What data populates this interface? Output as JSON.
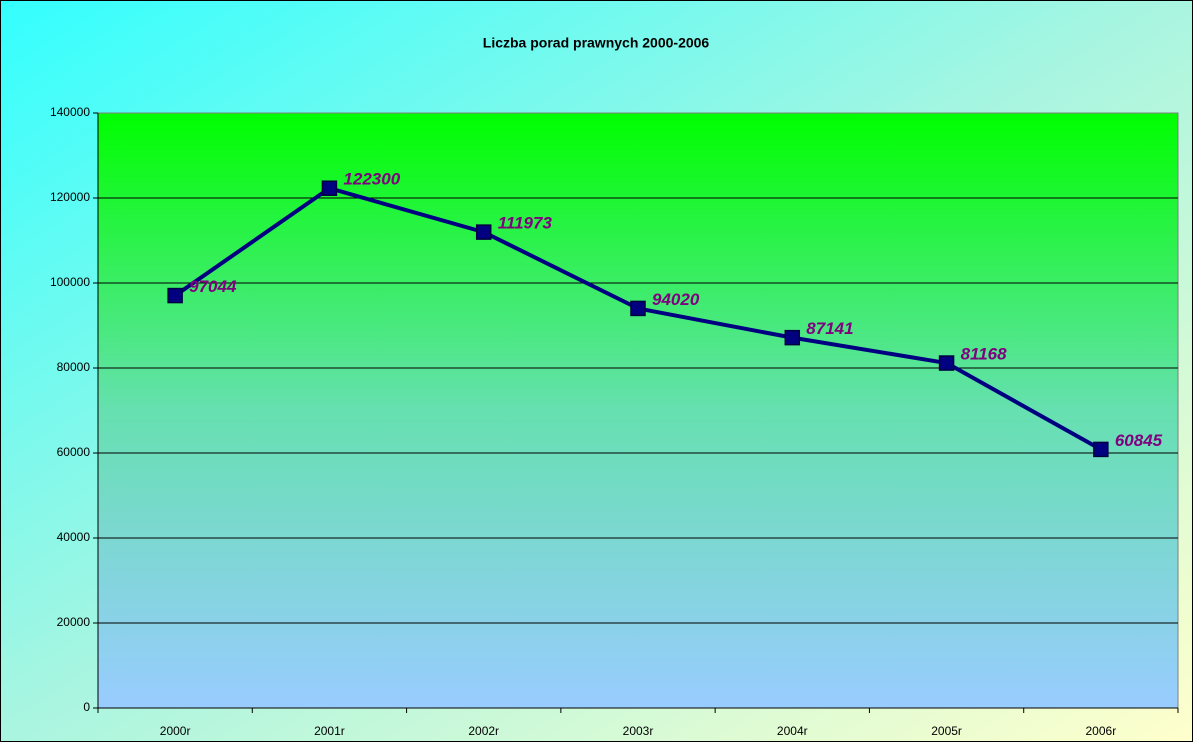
{
  "chart_data": {
    "type": "line",
    "title": "Liczba porad prawnych 2000-2006",
    "categories": [
      "2000r",
      "2001r",
      "2002r",
      "2003r",
      "2004r",
      "2005r",
      "2006r"
    ],
    "series": [
      {
        "name": null,
        "color": "#000080",
        "values": [
          97044,
          122300,
          111973,
          94020,
          87141,
          81168,
          60845
        ]
      }
    ],
    "ylim": [
      0,
      140000
    ],
    "yticks": [
      0,
      20000,
      40000,
      60000,
      80000,
      100000,
      120000,
      140000
    ],
    "grid": true
  }
}
